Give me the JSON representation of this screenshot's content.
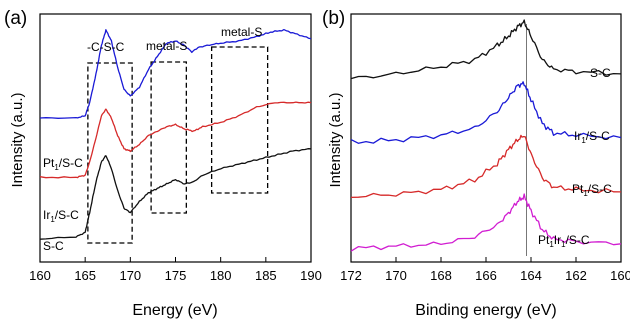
{
  "chart_data": [
    {
      "panel_label": "(a)",
      "type": "line",
      "xlabel": "Energy (eV)",
      "ylabel": "Intensity (a.u.)",
      "xlim": [
        160,
        190
      ],
      "x_ticks": [
        160,
        165,
        170,
        175,
        180,
        185,
        190
      ],
      "y_ticks_shown": false,
      "grid": false,
      "legend": "labels placed at left of each curve",
      "annotations": [
        "-C-S-C",
        "metal-S",
        "metal-S"
      ],
      "series": [
        {
          "name": "Pt₁/S-C",
          "color": "#1a1ad6",
          "x": [
            160,
            164,
            165,
            165.5,
            166.2,
            166.8,
            167.3,
            167.9,
            168.6,
            169.3,
            170.0,
            171.0,
            172.0,
            173.0,
            174.0,
            175.0,
            176.0,
            176.8,
            177.5,
            178.5,
            180.0,
            182.0,
            184.0,
            185.5,
            187.0,
            188.5,
            190
          ],
          "y": [
            0.6,
            0.6,
            0.61,
            0.67,
            0.8,
            0.93,
            1.0,
            0.95,
            0.83,
            0.73,
            0.7,
            0.74,
            0.82,
            0.88,
            0.94,
            0.95,
            0.93,
            0.9,
            0.92,
            0.93,
            0.94,
            0.95,
            0.97,
            0.99,
            1.0,
            0.98,
            0.96
          ]
        },
        {
          "name": "Ir₁/S-C",
          "color": "#d62a2a",
          "x": [
            160,
            164,
            165,
            165.5,
            166.2,
            166.8,
            167.3,
            167.9,
            168.6,
            169.3,
            170.0,
            171.0,
            172.0,
            173.0,
            174.0,
            175.0,
            176.0,
            177.0,
            178.0,
            180.0,
            182.0,
            184.0,
            186.0,
            188.0,
            190
          ],
          "y": [
            0.33,
            0.33,
            0.34,
            0.4,
            0.51,
            0.61,
            0.64,
            0.6,
            0.52,
            0.46,
            0.45,
            0.48,
            0.52,
            0.54,
            0.56,
            0.57,
            0.55,
            0.54,
            0.56,
            0.58,
            0.61,
            0.65,
            0.67,
            0.67,
            0.67
          ]
        },
        {
          "name": "S-C",
          "color": "#111111",
          "x": [
            160,
            164,
            165,
            165.5,
            166.2,
            166.8,
            167.3,
            167.9,
            168.6,
            169.3,
            170.0,
            171.0,
            172.0,
            173.0,
            174.0,
            175.0,
            176.0,
            177.0,
            178.0,
            180.0,
            182.0,
            184.0,
            186.0,
            188.0,
            190
          ],
          "y": [
            0.05,
            0.06,
            0.08,
            0.17,
            0.31,
            0.4,
            0.43,
            0.37,
            0.27,
            0.19,
            0.17,
            0.22,
            0.26,
            0.28,
            0.3,
            0.32,
            0.3,
            0.31,
            0.34,
            0.37,
            0.39,
            0.41,
            0.43,
            0.45,
            0.46
          ]
        }
      ]
    },
    {
      "panel_label": "(b)",
      "type": "line",
      "xlabel": "Binding energy (eV)",
      "ylabel": "Intensity (a.u.)",
      "xlim": [
        172,
        160
      ],
      "x_ticks": [
        172,
        170,
        168,
        166,
        164,
        162,
        160
      ],
      "y_ticks_shown": false,
      "grid": false,
      "legend": "labels placed at right of each curve",
      "reference_line_x": 164.2,
      "series": [
        {
          "name": "S-C",
          "color": "#111111",
          "x": [
            172,
            170,
            168,
            166.5,
            165.5,
            165.0,
            164.6,
            164.3,
            164.0,
            163.5,
            163.0,
            162.0,
            160
          ],
          "y": [
            0.76,
            0.78,
            0.81,
            0.84,
            0.9,
            0.94,
            0.98,
            1.0,
            0.94,
            0.84,
            0.8,
            0.79,
            0.78
          ]
        },
        {
          "name": "Ir₁/S-C",
          "color": "#1a1ad6",
          "x": [
            172,
            170,
            168,
            166.5,
            165.5,
            165.0,
            164.6,
            164.3,
            164.0,
            163.5,
            163.0,
            162.0,
            160
          ],
          "y": [
            0.49,
            0.5,
            0.52,
            0.55,
            0.62,
            0.68,
            0.73,
            0.74,
            0.67,
            0.57,
            0.53,
            0.52,
            0.51
          ]
        },
        {
          "name": "Pt₁/S-C",
          "color": "#d62a2a",
          "x": [
            172,
            170,
            168,
            166.5,
            165.5,
            165.0,
            164.6,
            164.3,
            164.0,
            163.5,
            163.0,
            162.0,
            160
          ],
          "y": [
            0.26,
            0.27,
            0.29,
            0.33,
            0.4,
            0.46,
            0.5,
            0.52,
            0.44,
            0.34,
            0.3,
            0.29,
            0.28
          ]
        },
        {
          "name": "Pt₁Ir₁/S-C",
          "color": "#d11dd1",
          "x": [
            172,
            170,
            168,
            166.5,
            165.5,
            165.0,
            164.6,
            164.3,
            164.0,
            163.5,
            163.0,
            162.0,
            160
          ],
          "y": [
            0.04,
            0.05,
            0.06,
            0.09,
            0.14,
            0.19,
            0.24,
            0.26,
            0.2,
            0.12,
            0.08,
            0.07,
            0.06
          ]
        }
      ]
    }
  ]
}
